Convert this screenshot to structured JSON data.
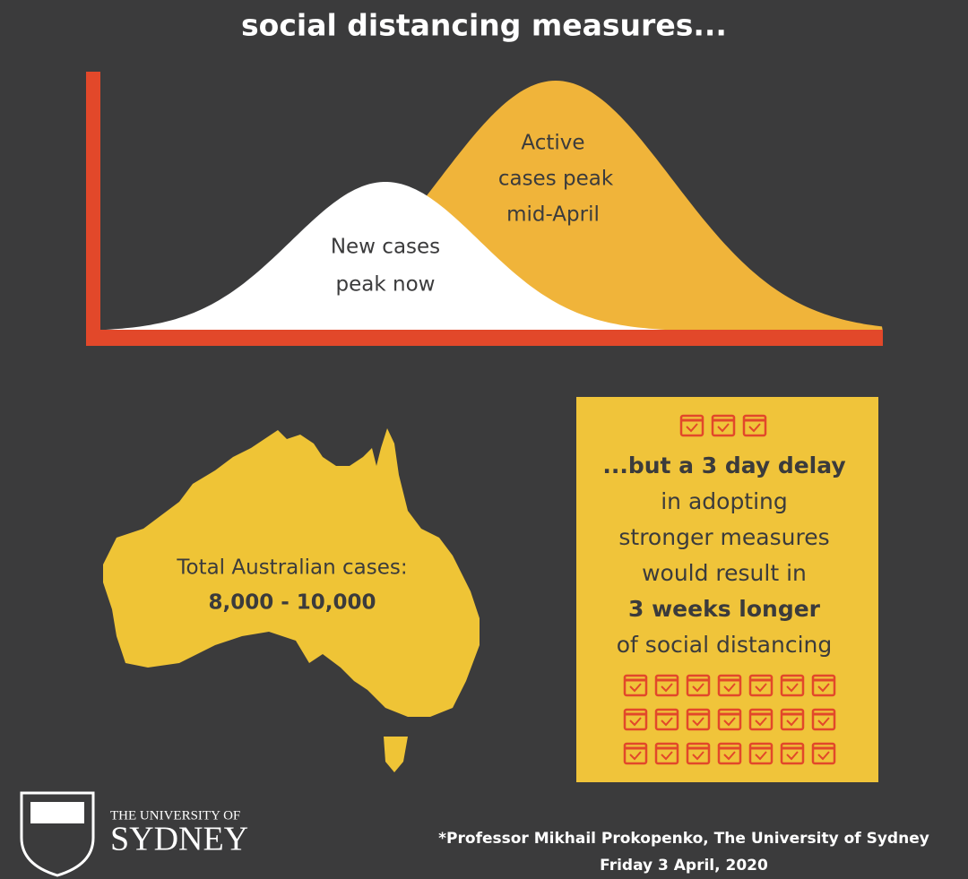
{
  "title": "social distancing measures...",
  "chart": {
    "active_label": [
      "Active",
      "cases peak",
      "mid-April"
    ],
    "new_label": [
      "New cases",
      "peak now"
    ]
  },
  "australia": {
    "label": "Total Australian cases:",
    "value": "8,000 - 10,000"
  },
  "callout": {
    "lines": [
      "...but a 3 day delay",
      "in adopting",
      "stronger measures",
      "would result in",
      "3 weeks longer",
      "of social distancing"
    ]
  },
  "logo": {
    "line1": "THE UNIVERSITY OF",
    "line2": "SYDNEY"
  },
  "footer": {
    "source": "*Professor Mikhail Prokopenko, The University of Sydney",
    "date": "Friday 3 April, 2020"
  }
}
